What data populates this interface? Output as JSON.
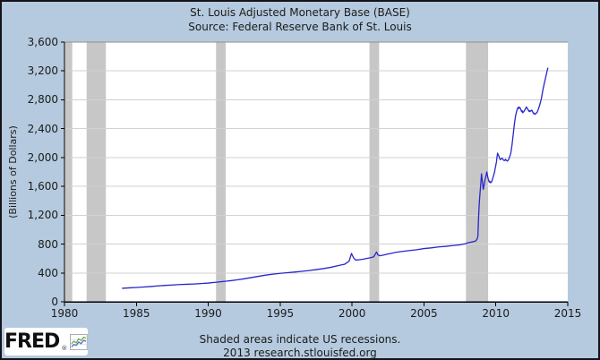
{
  "header": {
    "title": "St. Louis Adjusted Monetary Base (BASE)",
    "subtitle": "Source: Federal Reserve Bank of St. Louis"
  },
  "footer": {
    "note": "Shaded areas indicate US recessions.",
    "credit": "2013 research.stlouisfed.org",
    "logo_text": "FRED",
    "logo_reg": "®"
  },
  "colors": {
    "background": "#b5cade",
    "plot_background": "#ffffff",
    "line": "#2626cc",
    "recession_band": "#c7c7c7",
    "gridline": "#d2d2d2",
    "axis": "#000000",
    "frame_top": "#8f8f8f",
    "text": "#1b1b1b"
  },
  "logo_icon": {
    "border": "#9aa7b0",
    "blue": "#4a6fbd",
    "green": "#6aa84f"
  },
  "chart_data": {
    "type": "line",
    "title": "St. Louis Adjusted Monetary Base (BASE)",
    "subtitle": "Source: Federal Reserve Bank of St. Louis",
    "xlabel": "",
    "ylabel": "(Billions of Dollars)",
    "xlim": [
      1980,
      2015
    ],
    "ylim": [
      0,
      3600
    ],
    "x_ticks": [
      1980,
      1985,
      1990,
      1995,
      2000,
      2005,
      2010,
      2015
    ],
    "x_tick_labels": [
      "1980",
      "1985",
      "1990",
      "1995",
      "2000",
      "2005",
      "2010",
      "2015"
    ],
    "y_ticks": [
      0,
      400,
      800,
      1200,
      1600,
      2000,
      2400,
      2800,
      3200,
      3600
    ],
    "y_tick_labels": [
      "0",
      "400",
      "800",
      "1,200",
      "1,600",
      "2,000",
      "2,400",
      "2,800",
      "3,200",
      "3,600"
    ],
    "grid": true,
    "legend": "none",
    "annotation": "Shaded areas indicate US recessions.",
    "recessions": [
      [
        1980.04,
        1980.54
      ],
      [
        1981.54,
        1982.88
      ],
      [
        1990.54,
        1991.21
      ],
      [
        2001.21,
        2001.88
      ],
      [
        2007.92,
        2009.46
      ]
    ],
    "series": [
      {
        "name": "St. Louis Adjusted Monetary Base",
        "color": "#2626cc",
        "points": [
          [
            1984,
            187
          ],
          [
            1984.5,
            193
          ],
          [
            1985,
            199
          ],
          [
            1985.5,
            205
          ],
          [
            1986,
            212
          ],
          [
            1986.5,
            220
          ],
          [
            1987,
            227
          ],
          [
            1987.5,
            233
          ],
          [
            1988,
            239
          ],
          [
            1988.5,
            243
          ],
          [
            1989,
            247
          ],
          [
            1989.5,
            253
          ],
          [
            1990,
            260
          ],
          [
            1990.5,
            270
          ],
          [
            1991,
            281
          ],
          [
            1991.5,
            291
          ],
          [
            1992,
            304
          ],
          [
            1992.5,
            319
          ],
          [
            1993,
            336
          ],
          [
            1993.5,
            353
          ],
          [
            1994,
            370
          ],
          [
            1994.5,
            383
          ],
          [
            1995,
            394
          ],
          [
            1995.5,
            403
          ],
          [
            1996,
            412
          ],
          [
            1996.5,
            422
          ],
          [
            1997,
            433
          ],
          [
            1997.5,
            446
          ],
          [
            1998,
            460
          ],
          [
            1998.5,
            477
          ],
          [
            1999,
            500
          ],
          [
            1999.5,
            522
          ],
          [
            1999.8,
            565
          ],
          [
            1999.96,
            670
          ],
          [
            2000.1,
            610
          ],
          [
            2000.25,
            578
          ],
          [
            2000.5,
            584
          ],
          [
            2000.75,
            590
          ],
          [
            2001,
            600
          ],
          [
            2001.25,
            610
          ],
          [
            2001.5,
            622
          ],
          [
            2001.7,
            690
          ],
          [
            2001.8,
            650
          ],
          [
            2001.95,
            638
          ],
          [
            2002.2,
            648
          ],
          [
            2002.5,
            663
          ],
          [
            2002.75,
            672
          ],
          [
            2003,
            684
          ],
          [
            2003.5,
            698
          ],
          [
            2004,
            711
          ],
          [
            2004.5,
            722
          ],
          [
            2005,
            738
          ],
          [
            2005.5,
            747
          ],
          [
            2006,
            760
          ],
          [
            2006.5,
            769
          ],
          [
            2007,
            779
          ],
          [
            2007.5,
            790
          ],
          [
            2007.9,
            805
          ],
          [
            2008,
            814
          ],
          [
            2008.2,
            824
          ],
          [
            2008.4,
            831
          ],
          [
            2008.6,
            842
          ],
          [
            2008.7,
            871
          ],
          [
            2008.75,
            908
          ],
          [
            2008.79,
            1130
          ],
          [
            2008.83,
            1310
          ],
          [
            2008.87,
            1435
          ],
          [
            2008.92,
            1560
          ],
          [
            2008.96,
            1655
          ],
          [
            2009,
            1774
          ],
          [
            2009.04,
            1700
          ],
          [
            2009.08,
            1640
          ],
          [
            2009.12,
            1558
          ],
          [
            2009.17,
            1600
          ],
          [
            2009.21,
            1650
          ],
          [
            2009.25,
            1696
          ],
          [
            2009.29,
            1725
          ],
          [
            2009.33,
            1760
          ],
          [
            2009.37,
            1800
          ],
          [
            2009.42,
            1745
          ],
          [
            2009.46,
            1710
          ],
          [
            2009.5,
            1680
          ],
          [
            2009.54,
            1660
          ],
          [
            2009.58,
            1672
          ],
          [
            2009.62,
            1650
          ],
          [
            2009.67,
            1655
          ],
          [
            2009.71,
            1665
          ],
          [
            2009.75,
            1690
          ],
          [
            2009.79,
            1716
          ],
          [
            2009.83,
            1740
          ],
          [
            2009.87,
            1770
          ],
          [
            2009.92,
            1810
          ],
          [
            2009.96,
            1855
          ],
          [
            2010.04,
            1937
          ],
          [
            2010.08,
            2005
          ],
          [
            2010.12,
            2060
          ],
          [
            2010.17,
            2035
          ],
          [
            2010.21,
            2021
          ],
          [
            2010.29,
            1972
          ],
          [
            2010.37,
            1978
          ],
          [
            2010.42,
            1992
          ],
          [
            2010.46,
            1983
          ],
          [
            2010.54,
            1962
          ],
          [
            2010.62,
            1958
          ],
          [
            2010.67,
            1976
          ],
          [
            2010.71,
            1964
          ],
          [
            2010.79,
            1951
          ],
          [
            2010.87,
            1965
          ],
          [
            2010.96,
            2009
          ],
          [
            2011.04,
            2063
          ],
          [
            2011.12,
            2168
          ],
          [
            2011.21,
            2325
          ],
          [
            2011.29,
            2467
          ],
          [
            2011.37,
            2577
          ],
          [
            2011.46,
            2653
          ],
          [
            2011.5,
            2672
          ],
          [
            2011.54,
            2694
          ],
          [
            2011.58,
            2678
          ],
          [
            2011.62,
            2699
          ],
          [
            2011.67,
            2688
          ],
          [
            2011.71,
            2681
          ],
          [
            2011.75,
            2658
          ],
          [
            2011.79,
            2636
          ],
          [
            2011.83,
            2648
          ],
          [
            2011.87,
            2620
          ],
          [
            2011.92,
            2632
          ],
          [
            2011.96,
            2639
          ],
          [
            2012,
            2656
          ],
          [
            2012.04,
            2668
          ],
          [
            2012.08,
            2686
          ],
          [
            2012.12,
            2700
          ],
          [
            2012.17,
            2686
          ],
          [
            2012.21,
            2672
          ],
          [
            2012.25,
            2658
          ],
          [
            2012.29,
            2642
          ],
          [
            2012.33,
            2652
          ],
          [
            2012.37,
            2635
          ],
          [
            2012.42,
            2646
          ],
          [
            2012.46,
            2648
          ],
          [
            2012.5,
            2657
          ],
          [
            2012.54,
            2642
          ],
          [
            2012.58,
            2624
          ],
          [
            2012.62,
            2609
          ],
          [
            2012.67,
            2616
          ],
          [
            2012.71,
            2598
          ],
          [
            2012.75,
            2606
          ],
          [
            2012.79,
            2609
          ],
          [
            2012.83,
            2621
          ],
          [
            2012.87,
            2627
          ],
          [
            2012.92,
            2652
          ],
          [
            2012.96,
            2673
          ],
          [
            2013.04,
            2720
          ],
          [
            2013.08,
            2752
          ],
          [
            2013.12,
            2779
          ],
          [
            2013.17,
            2822
          ],
          [
            2013.21,
            2869
          ],
          [
            2013.25,
            2912
          ],
          [
            2013.29,
            2956
          ],
          [
            2013.33,
            2992
          ],
          [
            2013.37,
            3030
          ],
          [
            2013.42,
            3072
          ],
          [
            2013.46,
            3108
          ],
          [
            2013.5,
            3142
          ],
          [
            2013.54,
            3179
          ],
          [
            2013.58,
            3212
          ],
          [
            2013.62,
            3245
          ]
        ]
      }
    ]
  }
}
